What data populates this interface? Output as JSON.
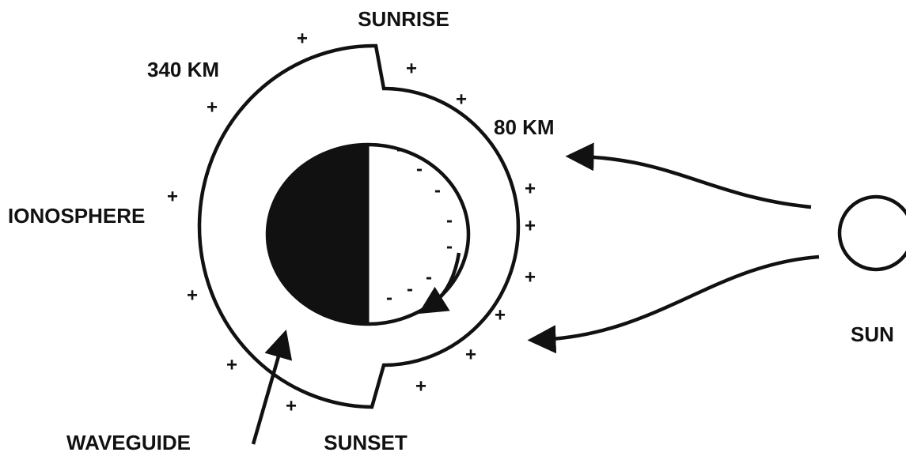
{
  "labels": {
    "sunrise": "SUNRISE",
    "sunset": "SUNSET",
    "outer_height": "340 KM",
    "inner_height": "80 KM",
    "ionosphere": "IONOSPHERE",
    "waveguide": "WAVEGUIDE",
    "sun": "SUN"
  },
  "charges": {
    "positive": [
      "+",
      "+",
      "+",
      "+",
      "+",
      "+",
      "+",
      "+",
      "+",
      "+",
      "+",
      "+",
      "+",
      "+"
    ],
    "negative": [
      "-",
      "-",
      "-",
      "-",
      "-",
      "-",
      "-",
      "-",
      "-"
    ]
  }
}
